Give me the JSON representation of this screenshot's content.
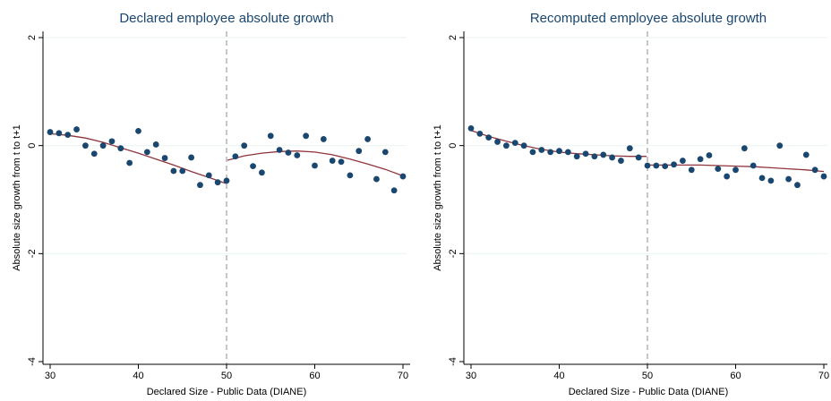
{
  "colors": {
    "points": "#1a476f",
    "fit_line": "#90353b",
    "grid": "#eaf2f3",
    "cutoff_line": "#8c8c8c",
    "title": "#1a476f"
  },
  "chart_data": [
    {
      "type": "scatter",
      "title": "Declared employee absolute growth",
      "xlabel": "Declared Size - Public Data (DIANE)",
      "ylabel": "Absolute size growth from t to t+1",
      "xlim": [
        29,
        71
      ],
      "ylim": [
        -4,
        2
      ],
      "xticks": [
        30,
        40,
        50,
        60,
        70
      ],
      "yticks": [
        2,
        0,
        -2,
        -4
      ],
      "ytick_labels": [
        "2",
        "0",
        "-2",
        "-4"
      ],
      "grid": true,
      "cutoff_x": 50,
      "points": {
        "x": [
          30,
          31,
          32,
          33,
          34,
          35,
          36,
          37,
          38,
          39,
          40,
          41,
          42,
          43,
          44,
          45,
          46,
          47,
          48,
          49,
          50,
          51,
          52,
          53,
          54,
          55,
          56,
          57,
          58,
          59,
          60,
          61,
          62,
          63,
          64,
          65,
          66,
          67,
          68,
          69,
          70
        ],
        "y": [
          0.25,
          0.23,
          0.2,
          0.3,
          0.0,
          -0.15,
          0.0,
          0.08,
          -0.05,
          -0.32,
          0.27,
          -0.12,
          0.02,
          -0.23,
          -0.47,
          -0.47,
          -0.22,
          -0.73,
          -0.55,
          -0.68,
          -0.65,
          -0.2,
          0.0,
          -0.38,
          -0.5,
          0.18,
          -0.08,
          -0.13,
          -0.18,
          0.18,
          -0.37,
          0.12,
          -0.28,
          -0.3,
          -0.55,
          -0.1,
          0.12,
          -0.62,
          -0.12,
          -0.83,
          -0.57
        ]
      },
      "fits": [
        {
          "x": [
            30,
            32,
            34,
            36,
            38,
            40,
            42,
            44,
            46,
            48,
            49.9
          ],
          "y": [
            0.22,
            0.19,
            0.14,
            0.06,
            -0.04,
            -0.14,
            -0.25,
            -0.36,
            -0.48,
            -0.59,
            -0.7
          ]
        },
        {
          "x": [
            50.1,
            52,
            54,
            56,
            58,
            60,
            62,
            64,
            66,
            68,
            70
          ],
          "y": [
            -0.27,
            -0.19,
            -0.14,
            -0.11,
            -0.1,
            -0.12,
            -0.17,
            -0.25,
            -0.34,
            -0.44,
            -0.56
          ]
        }
      ]
    },
    {
      "type": "scatter",
      "title": "Recomputed employee absolute growth",
      "xlabel": "Declared Size - Public Data (DIANE)",
      "ylabel": "Absolute size growth from t to t+1",
      "xlim": [
        29,
        71
      ],
      "ylim": [
        -4,
        2
      ],
      "xticks": [
        30,
        40,
        50,
        60,
        70
      ],
      "yticks": [
        2,
        0,
        -2,
        -4
      ],
      "ytick_labels": [
        "2",
        "0",
        "-2",
        "-4"
      ],
      "grid": true,
      "cutoff_x": 50,
      "points": {
        "x": [
          30,
          31,
          32,
          33,
          34,
          35,
          36,
          37,
          38,
          39,
          40,
          41,
          42,
          43,
          44,
          45,
          46,
          47,
          48,
          49,
          50,
          51,
          52,
          53,
          54,
          55,
          56,
          57,
          58,
          59,
          60,
          61,
          62,
          63,
          64,
          65,
          66,
          67,
          68,
          69,
          70
        ],
        "y": [
          0.32,
          0.22,
          0.15,
          0.07,
          0.0,
          0.05,
          0.0,
          -0.12,
          -0.08,
          -0.12,
          -0.1,
          -0.12,
          -0.2,
          -0.15,
          -0.2,
          -0.17,
          -0.22,
          -0.28,
          -0.05,
          -0.22,
          -0.37,
          -0.37,
          -0.38,
          -0.35,
          -0.28,
          -0.45,
          -0.25,
          -0.18,
          -0.43,
          -0.57,
          -0.45,
          -0.05,
          -0.37,
          -0.6,
          -0.65,
          0.0,
          -0.62,
          -0.73,
          -0.17,
          -0.45,
          -0.57
        ]
      },
      "fits": [
        {
          "x": [
            30,
            32,
            34,
            36,
            38,
            40,
            42,
            44,
            46,
            48,
            49.9
          ],
          "y": [
            0.28,
            0.17,
            0.08,
            0.0,
            -0.07,
            -0.12,
            -0.15,
            -0.17,
            -0.19,
            -0.2,
            -0.2
          ]
        },
        {
          "x": [
            50.1,
            52,
            54,
            56,
            58,
            60,
            62,
            64,
            66,
            68,
            70
          ],
          "y": [
            -0.36,
            -0.36,
            -0.36,
            -0.36,
            -0.37,
            -0.38,
            -0.39,
            -0.41,
            -0.43,
            -0.45,
            -0.48
          ]
        }
      ]
    }
  ]
}
